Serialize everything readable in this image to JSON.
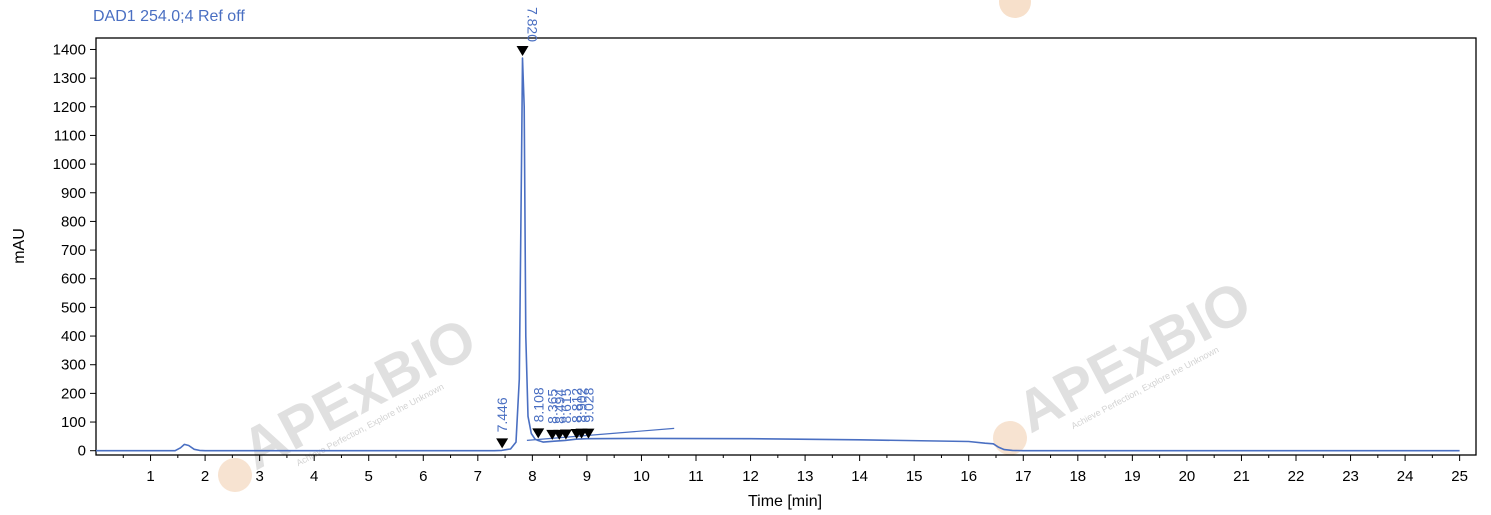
{
  "signal_label": "DAD1 254.0;4 Ref off",
  "colors": {
    "trace": "#4a6fc2",
    "axis": "#000000",
    "annotation": "#4a6fc2",
    "marker": "#000000",
    "watermark": "#d9d9d9",
    "watermark_accent": "#f0c7a0"
  },
  "watermark": {
    "brand": "APExBIO",
    "tagline": "Achieve Perfection, Explore the Unknown"
  },
  "chart_data": {
    "type": "line",
    "title": "",
    "xlabel": "Time [min]",
    "ylabel": "mAU",
    "xlim": [
      0,
      25.3
    ],
    "ylim": [
      -15,
      1440
    ],
    "x_ticks": [
      1,
      2,
      3,
      4,
      5,
      6,
      7,
      8,
      9,
      10,
      11,
      12,
      13,
      14,
      15,
      16,
      17,
      18,
      19,
      20,
      21,
      22,
      23,
      24,
      25
    ],
    "y_ticks": [
      0,
      100,
      200,
      300,
      400,
      500,
      600,
      700,
      800,
      900,
      1000,
      1100,
      1200,
      1300,
      1400
    ],
    "grid": false,
    "series": [
      {
        "x": [
          0,
          1.45,
          1.55,
          1.62,
          1.7,
          1.8,
          1.9,
          2.0,
          7.3,
          7.44,
          7.5,
          7.6,
          7.7,
          7.76,
          7.8,
          7.82,
          7.85,
          7.88,
          7.92,
          7.98,
          8.05,
          8.1,
          8.2,
          8.4,
          8.6,
          8.8,
          9.0,
          10.0,
          12.0,
          14.0,
          16.0,
          16.3,
          16.45,
          16.55,
          16.65,
          16.8,
          17.0,
          25.0
        ],
        "y": [
          0,
          0,
          10,
          22,
          18,
          5,
          1,
          0,
          0,
          1,
          3,
          6,
          30,
          250,
          1000,
          1370,
          1200,
          400,
          120,
          60,
          40,
          36,
          30,
          33,
          36,
          40,
          42,
          43,
          42,
          38,
          32,
          26,
          24,
          12,
          4,
          1,
          0,
          0
        ]
      }
    ],
    "peaks": [
      {
        "rt": "7.446",
        "time": 7.446,
        "height": 1
      },
      {
        "rt": "7.820",
        "time": 7.82,
        "height": 1370
      },
      {
        "rt": "8.108",
        "time": 8.108,
        "height": 36
      },
      {
        "rt": "8.365",
        "time": 8.365,
        "height": 31
      },
      {
        "rt": "8.494",
        "time": 8.494,
        "height": 31
      },
      {
        "rt": "8.615",
        "time": 8.615,
        "height": 32
      },
      {
        "rt": "8.812",
        "time": 8.812,
        "height": 34
      },
      {
        "rt": "8.902",
        "time": 8.902,
        "height": 35
      },
      {
        "rt": "9.028",
        "time": 9.028,
        "height": 35
      }
    ]
  }
}
